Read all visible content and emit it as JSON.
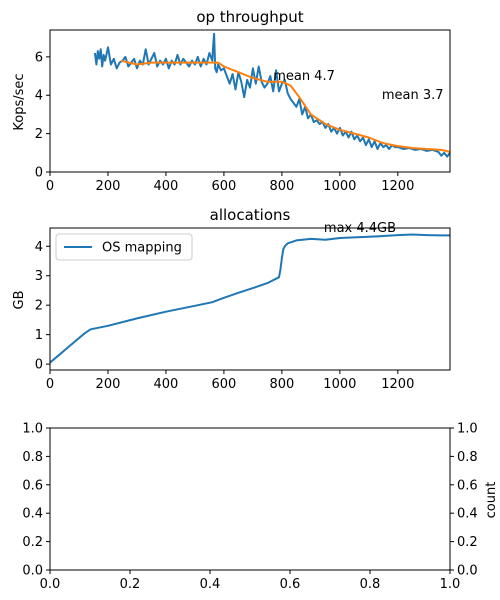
{
  "chart_data": [
    {
      "type": "line",
      "title": "op throughput",
      "xlabel": "",
      "ylabel": "Kops/sec",
      "xlim": [
        0,
        1380
      ],
      "ylim": [
        0,
        7.4
      ],
      "xticks": [
        0,
        200,
        400,
        600,
        800,
        1000,
        1200
      ],
      "yticks": [
        0,
        2,
        4,
        6
      ],
      "series": [
        {
          "color": "#1f77b4",
          "x": [
            155,
            160,
            165,
            170,
            175,
            180,
            185,
            190,
            200,
            210,
            220,
            230,
            240,
            250,
            260,
            270,
            280,
            290,
            300,
            310,
            320,
            330,
            340,
            350,
            360,
            370,
            380,
            390,
            400,
            410,
            420,
            430,
            440,
            450,
            460,
            470,
            480,
            490,
            500,
            510,
            520,
            530,
            540,
            550,
            560,
            563,
            566,
            570,
            575,
            580,
            590,
            600,
            610,
            620,
            630,
            640,
            650,
            660,
            670,
            680,
            690,
            700,
            710,
            720,
            730,
            740,
            750,
            760,
            770,
            780,
            790,
            800,
            810,
            820,
            830,
            840,
            850,
            860,
            870,
            880,
            890,
            900,
            910,
            920,
            930,
            940,
            950,
            960,
            970,
            980,
            990,
            1000,
            1010,
            1020,
            1030,
            1040,
            1050,
            1060,
            1070,
            1080,
            1090,
            1100,
            1110,
            1120,
            1130,
            1140,
            1150,
            1160,
            1170,
            1180,
            1190,
            1200,
            1220,
            1240,
            1260,
            1280,
            1300,
            1320,
            1340,
            1350,
            1360,
            1370,
            1380
          ],
          "y": [
            6.2,
            5.6,
            6.3,
            5.9,
            6.4,
            5.5,
            6.1,
            5.8,
            6.5,
            5.6,
            5.9,
            5.4,
            5.7,
            5.8,
            6.0,
            5.5,
            5.7,
            5.9,
            5.4,
            5.8,
            5.6,
            6.4,
            5.6,
            5.9,
            6.2,
            5.5,
            5.8,
            5.6,
            5.9,
            5.4,
            5.8,
            5.6,
            6.1,
            5.6,
            5.9,
            5.7,
            5.5,
            5.8,
            5.6,
            6.0,
            5.5,
            5.9,
            5.6,
            6.2,
            5.8,
            6.6,
            7.2,
            5.4,
            5.2,
            5.6,
            5.3,
            5.4,
            5.0,
            4.6,
            5.1,
            4.3,
            5.2,
            4.7,
            3.9,
            4.8,
            4.4,
            5.4,
            4.6,
            5.5,
            4.7,
            4.4,
            4.6,
            5.0,
            4.2,
            5.3,
            4.2,
            4.6,
            4.8,
            4.1,
            3.8,
            3.6,
            3.4,
            3.8,
            3.0,
            3.4,
            2.8,
            3.0,
            2.6,
            2.7,
            2.5,
            2.6,
            2.3,
            2.5,
            2.1,
            2.3,
            2.0,
            2.3,
            1.9,
            2.1,
            1.8,
            2.1,
            1.7,
            1.9,
            1.6,
            1.8,
            1.4,
            1.7,
            1.3,
            1.6,
            1.2,
            1.5,
            1.3,
            1.4,
            1.2,
            1.4,
            1.3,
            1.3,
            1.2,
            1.25,
            1.15,
            1.2,
            1.1,
            1.15,
            1.05,
            0.85,
            1.0,
            0.8,
            1.0
          ]
        },
        {
          "color": "#ff7f0e",
          "x": [
            245,
            300,
            350,
            400,
            450,
            500,
            550,
            580,
            600,
            650,
            700,
            750,
            800,
            830,
            860,
            900,
            950,
            1000,
            1050,
            1100,
            1150,
            1200,
            1250,
            1300,
            1350,
            1380
          ],
          "y": [
            5.8,
            5.6,
            5.7,
            5.7,
            5.7,
            5.7,
            5.7,
            5.7,
            5.5,
            5.2,
            4.9,
            4.7,
            4.7,
            4.5,
            3.9,
            3.0,
            2.5,
            2.2,
            2.0,
            1.8,
            1.5,
            1.35,
            1.25,
            1.2,
            1.15,
            1.05
          ]
        }
      ],
      "annotations": [
        {
          "text": "mean 4.7",
          "x": 770,
          "y": 4.8
        },
        {
          "text": "mean 3.7",
          "x": 1145,
          "y": 3.8
        }
      ]
    },
    {
      "type": "line",
      "title": "allocations",
      "xlabel": "",
      "ylabel": "GB",
      "xlim": [
        0,
        1380
      ],
      "ylim": [
        -0.2,
        4.62
      ],
      "xticks": [
        0,
        200,
        400,
        600,
        800,
        1000,
        1200
      ],
      "yticks": [
        0,
        1,
        2,
        3,
        4
      ],
      "legend_position": "upper-left",
      "series": [
        {
          "name": "OS mapping",
          "color": "#1f77b4",
          "x": [
            0,
            30,
            60,
            90,
            120,
            140,
            200,
            300,
            400,
            500,
            560,
            600,
            650,
            700,
            750,
            790,
            795,
            800,
            805,
            810,
            820,
            850,
            900,
            950,
            1000,
            1050,
            1100,
            1150,
            1200,
            1250,
            1300,
            1350,
            1380
          ],
          "y": [
            0.05,
            0.3,
            0.55,
            0.8,
            1.05,
            1.18,
            1.3,
            1.55,
            1.78,
            1.98,
            2.1,
            2.25,
            2.42,
            2.58,
            2.75,
            2.95,
            3.2,
            3.6,
            3.9,
            4.0,
            4.1,
            4.2,
            4.25,
            4.22,
            4.28,
            4.3,
            4.32,
            4.35,
            4.38,
            4.4,
            4.38,
            4.37,
            4.37
          ]
        }
      ],
      "annotations": [
        {
          "text": "max 4.4GB",
          "x": 945,
          "y": 4.48
        }
      ]
    },
    {
      "type": "line",
      "title": "",
      "xlabel": "",
      "ylabel": "",
      "right_ylabel": "count",
      "xlim": [
        0,
        1
      ],
      "ylim": [
        0,
        1
      ],
      "xticks": [
        0,
        0.2,
        0.4,
        0.6,
        0.8,
        1.0
      ],
      "yticks": [
        0,
        0.2,
        0.4,
        0.6,
        0.8,
        1.0
      ],
      "right_yticks": [
        0,
        0.2,
        0.4,
        0.6,
        0.8,
        1.0
      ],
      "series": []
    }
  ]
}
